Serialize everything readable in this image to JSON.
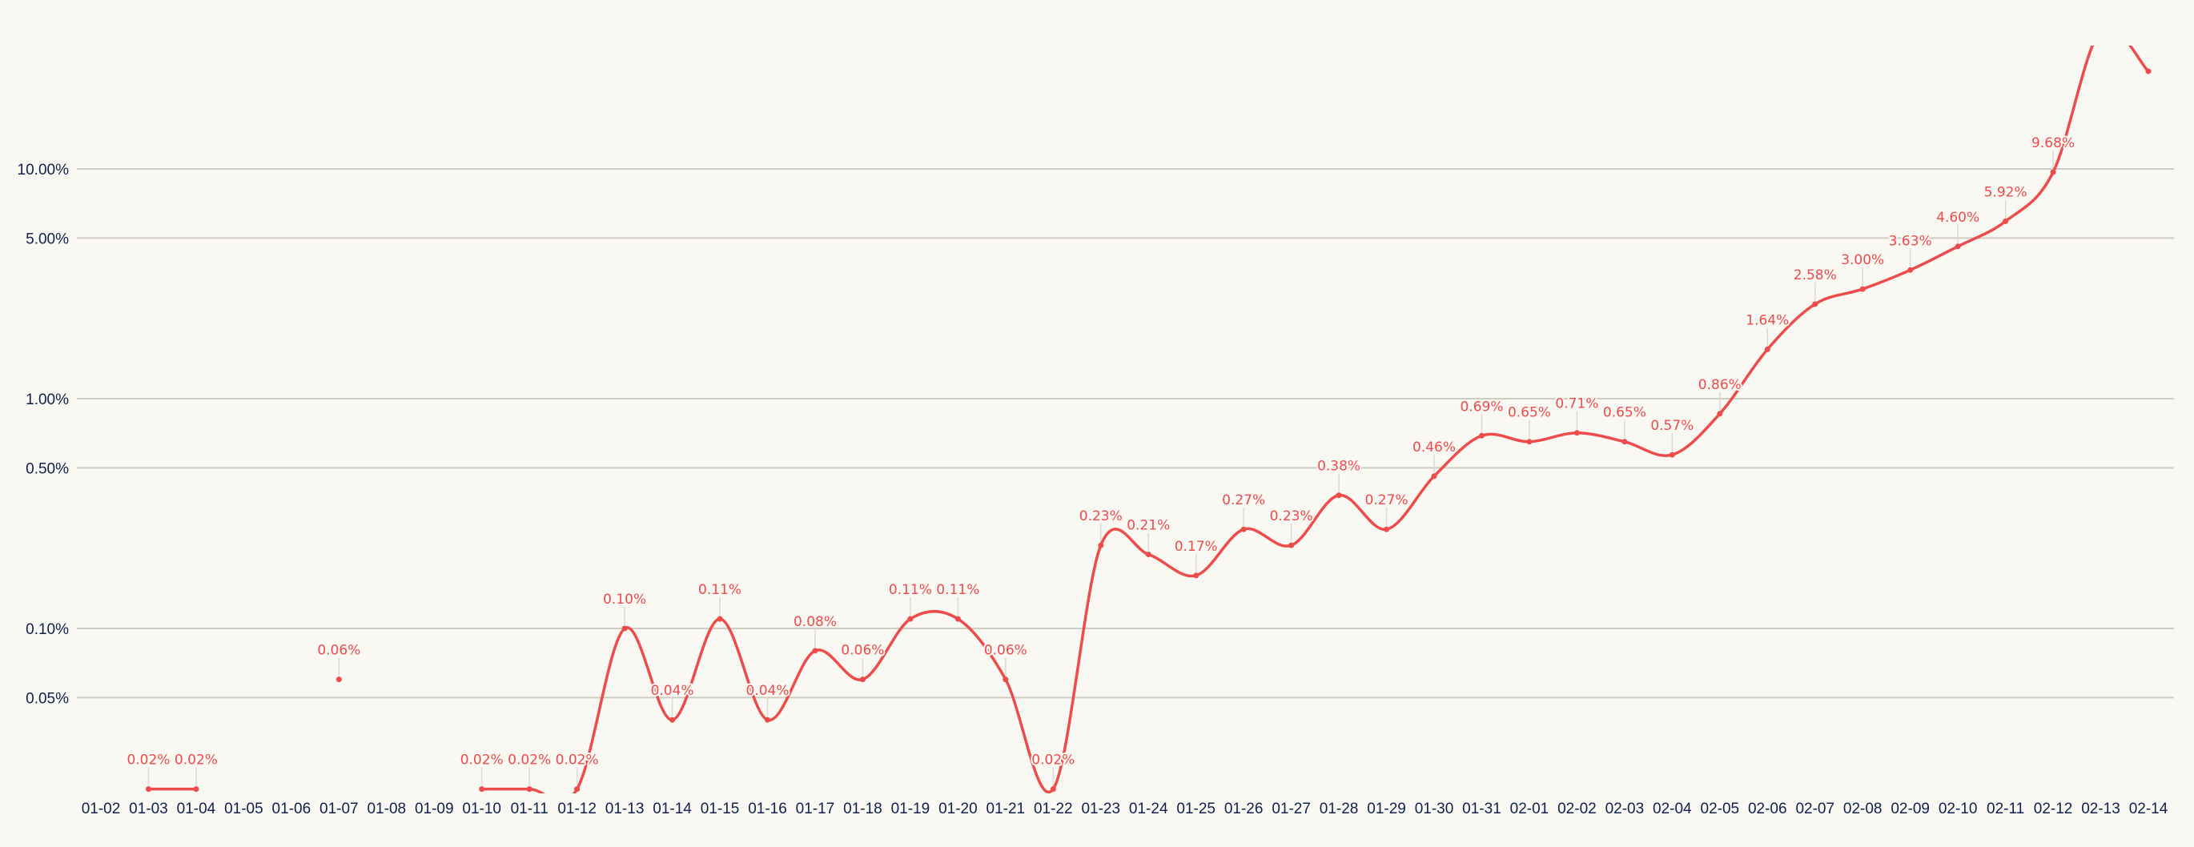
{
  "chart_data": {
    "type": "line",
    "title": "",
    "xlabel": "",
    "ylabel": "",
    "y_scale": "log",
    "y_tick_labels": [
      "10.00%",
      "5.00%",
      "1.00%",
      "0.50%",
      "0.10%",
      "0.05%"
    ],
    "y_ticks": [
      10,
      5,
      1,
      0.5,
      0.1,
      0.05
    ],
    "grid": true,
    "legend": null,
    "colors": {
      "line": "#ee4b4b",
      "axis_text": "#10204f",
      "grid": "#cfccc2",
      "background": "#faf8f2"
    },
    "categories": [
      "01-02",
      "01-03",
      "01-04",
      "01-05",
      "01-06",
      "01-07",
      "01-08",
      "01-09",
      "01-10",
      "01-11",
      "01-12",
      "01-13",
      "01-14",
      "01-15",
      "01-16",
      "01-17",
      "01-18",
      "01-19",
      "01-20",
      "01-21",
      "01-22",
      "01-23",
      "01-24",
      "01-25",
      "01-26",
      "01-27",
      "01-28",
      "01-29",
      "01-30",
      "01-31",
      "02-01",
      "02-02",
      "02-03",
      "02-04",
      "02-05",
      "02-06",
      "02-07",
      "02-08",
      "02-09",
      "02-10",
      "02-11",
      "02-12",
      "02-13",
      "02-14"
    ],
    "series": [
      {
        "name": "rate",
        "values": [
          null,
          0.02,
          0.02,
          null,
          null,
          0.06,
          null,
          null,
          0.02,
          0.02,
          0.02,
          0.1,
          0.04,
          0.11,
          0.04,
          0.08,
          0.06,
          0.11,
          0.11,
          0.06,
          0.02,
          0.23,
          0.21,
          0.17,
          0.27,
          0.23,
          0.38,
          0.27,
          0.46,
          0.69,
          0.65,
          0.71,
          0.65,
          0.57,
          0.86,
          1.64,
          2.58,
          3.0,
          3.63,
          4.6,
          5.92,
          9.68,
          40,
          26.6
        ],
        "labels": [
          "",
          "0.02%",
          "0.02%",
          "",
          "",
          "0.06%",
          "",
          "",
          "0.02%",
          "0.02%",
          "0.02%",
          "0.10%",
          "0.04%",
          "0.11%",
          "0.04%",
          "0.08%",
          "0.06%",
          "0.11%",
          "0.11%",
          "0.06%",
          "0.02%",
          "0.23%",
          "0.21%",
          "0.17%",
          "0.27%",
          "0.23%",
          "0.38%",
          "0.27%",
          "0.46%",
          "0.69%",
          "0.65%",
          "0.71%",
          "0.65%",
          "0.57%",
          "0.86%",
          "1.64%",
          "2.58%",
          "3.00%",
          "3.63%",
          "4.60%",
          "5.92%",
          "9.68%",
          "",
          ""
        ]
      }
    ],
    "notes": "02-13 and 02-14 values are unlabeled; 02-13 exceeds the visible plot area (estimated), 02-14 estimated ~26.6% from position."
  }
}
